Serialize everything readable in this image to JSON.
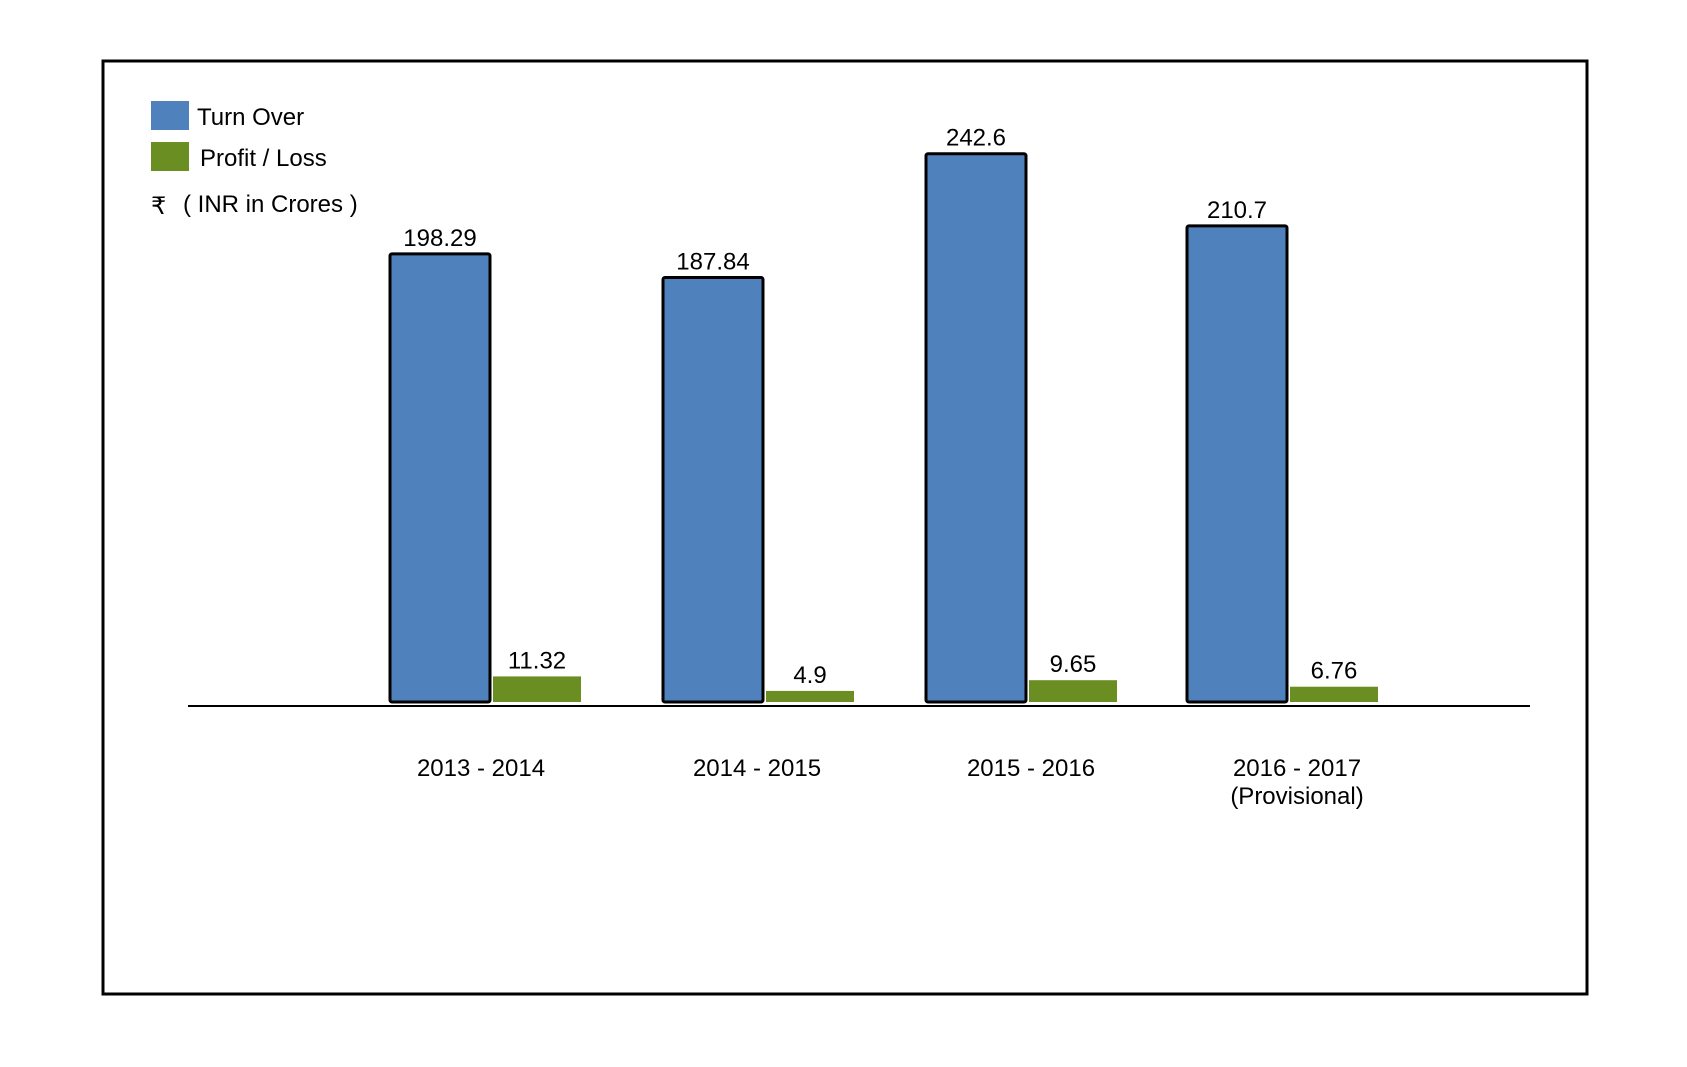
{
  "chart_data": {
    "type": "bar",
    "title": "",
    "xlabel": "",
    "ylabel": "",
    "categories": [
      [
        "2013 - 2014"
      ],
      [
        "2014 - 2015"
      ],
      [
        "2015 - 2016"
      ],
      [
        "2016 - 2017",
        "(Provisional)"
      ]
    ],
    "series": [
      {
        "name": "Turn Over",
        "color": "#4f81bd",
        "outlined": true,
        "values": [
          198.29,
          187.84,
          242.6,
          210.7
        ],
        "labels": [
          "198.29",
          "187.84",
          "242.6",
          "210.7"
        ]
      },
      {
        "name": "Profit / Loss",
        "color": "#6b8e23",
        "outlined": false,
        "values": [
          11.32,
          4.9,
          9.65,
          6.76
        ],
        "labels": [
          "11.32",
          "4.9",
          "9.65",
          "6.76"
        ]
      }
    ],
    "unit_note": {
      "symbol": "₹",
      "text": "( INR in Crores )"
    },
    "legend_position": "top-left",
    "grid": false
  }
}
